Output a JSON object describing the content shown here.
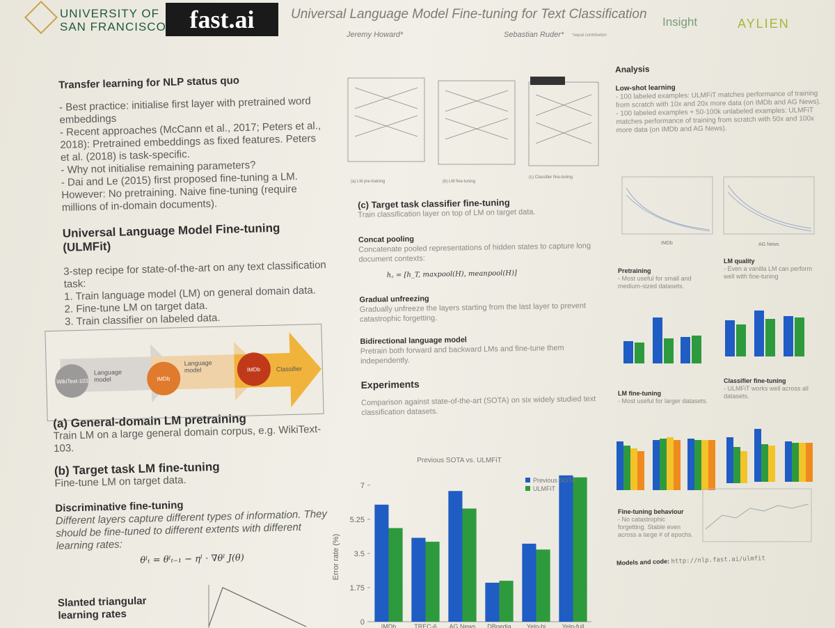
{
  "header": {
    "university": [
      "UNIVERSITY OF",
      "SAN FRANCISCO"
    ],
    "logo": "fast.ai",
    "title": "Universal Language Model Fine-tuning for Text Classification",
    "authors": [
      "Jeremy Howard*",
      "Sebastian Ruder*"
    ],
    "note": "*equal contribution",
    "sponsors": [
      "Insight",
      "AYLIEN"
    ]
  },
  "left": {
    "status_quo": {
      "heading": "Transfer learning for NLP status quo",
      "items": [
        "- Best practice: initialise first layer with pretrained word embeddings",
        "- Recent approaches (McCann et al., 2017; Peters et al., 2018): Pretrained embeddings as fixed features. Peters et al. (2018) is task-specific.",
        "- Why not initialise remaining parameters?",
        "- Dai and Le (2015) first proposed fine-tuning a LM. However: No pretraining. Naive fine-tuning (require millions of in-domain documents)."
      ]
    },
    "ulmfit": {
      "heading": "Universal Language Model Fine-tuning (ULMFit)",
      "intro": "3-step recipe for state-of-the-art on any text classification task:",
      "steps": [
        "1. Train language model (LM) on general domain data.",
        "2. Fine-tune LM on target data.",
        "3. Train classifier on labeled data."
      ]
    },
    "diagram": [
      "WikiText-103",
      "Language model",
      "IMDb",
      "Language model",
      "IMDb",
      "Classifier"
    ],
    "a": {
      "heading": "(a) General-domain LM pretraining",
      "text": "Train LM on a large general domain corpus, e.g. WikiText-103."
    },
    "b": {
      "heading": "(b) Target task LM fine-tuning",
      "text": "Fine-tune LM on target data."
    },
    "discriminative": {
      "heading": "Discriminative fine-tuning",
      "text": "Different layers capture different types of information. They should be fine-tuned to different extents with different learning rates:",
      "formula": "θˡₜ = θˡₜ₋₁ − ηˡ · ∇θˡ J(θ)"
    },
    "slanted": "Slanted triangular learning rates"
  },
  "middle": {
    "figure_captions": [
      "(a) LM pre-training",
      "(b) LM fine-tuning",
      "(c) Classifier fine-tuning"
    ],
    "c": {
      "heading": "(c) Target task classifier fine-tuning",
      "text": "Train classification layer on top of LM on target data."
    },
    "concat": {
      "heading": "Concat pooling",
      "text": "Concatenate pooled representations of hidden states to capture long document contexts:",
      "formula": "h꜀ = [h_T, maxpool(H), meanpool(H)]"
    },
    "gradual": {
      "heading": "Gradual unfreezing",
      "text": "Gradually unfreeze the layers starting from the last layer to prevent catastrophic forgetting."
    },
    "bidirectional": {
      "heading": "Bidirectional language model",
      "text": "Pretrain both forward and backward LMs and fine-tune them independently."
    },
    "experiments": {
      "heading": "Experiments",
      "text": "Comparison against state-of-the-art (SOTA) on six widely studied text classification datasets."
    }
  },
  "chart_data": {
    "type": "bar",
    "title": "Previous SOTA vs. ULMFiT",
    "y_label": "Error rate (%)",
    "categories": [
      "IMDb",
      "TREC-6",
      "AG News",
      "DBpedia",
      "Yelp-bi",
      "Yelp-full"
    ],
    "series": [
      {
        "name": "Previous SOTA",
        "color": "#1f5cc4",
        "values": [
          6.0,
          4.3,
          6.7,
          2.0,
          4.0,
          7.5
        ]
      },
      {
        "name": "ULMFiT",
        "color": "#2e9a3e",
        "values": [
          4.8,
          4.1,
          5.8,
          2.1,
          3.7,
          7.4
        ]
      }
    ],
    "ylim": [
      0,
      7.6
    ],
    "yticks": [
      0,
      1.75,
      3.5,
      5.25,
      7
    ],
    "legend": "top-right"
  },
  "right": {
    "analysis": "Analysis",
    "lowshot": {
      "heading": "Low-shot learning",
      "items": [
        "- 100 labeled examples: ULMFiT matches performance of training from scratch with 10x and 20x more data (on IMDb and AG News).",
        "- 100 labeled examples + 50-100k unlabeled examples: ULMFiT matches performance of training from scratch with 50x and 100x more data (on IMDb and AG News)."
      ],
      "plot_labels": [
        "IMDb",
        "AG News"
      ]
    },
    "pretraining": {
      "heading": "Pretraining",
      "text": "- Most useful for small and medium-sized datasets."
    },
    "lm_quality": {
      "heading": "LM quality",
      "text": "- Even a vanilla LM can perform well with fine-tuning"
    },
    "lm_ft": {
      "heading": "LM fine-tuning",
      "text": "- Most useful for larger datasets."
    },
    "clf_ft": {
      "heading": "Classifier fine-tuning",
      "text": "- ULMFiT works well across all datasets."
    },
    "behaviour": {
      "heading": "Fine-tuning behaviour",
      "text": "- No catastrophic forgetting. Stable even across a large # of epochs."
    },
    "code": {
      "label": "Models and code:",
      "url": "http://nlp.fast.ai/ulmfit"
    }
  }
}
